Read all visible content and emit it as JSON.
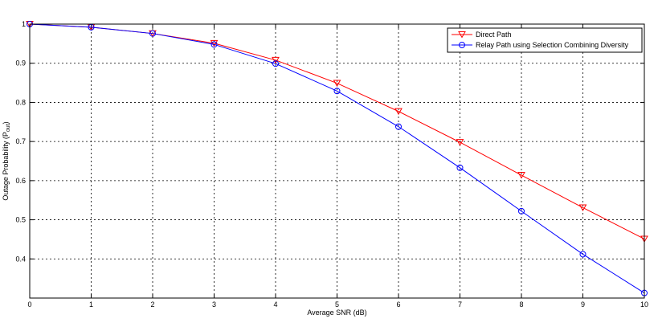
{
  "chart_data": {
    "type": "line",
    "xlabel": "Average SNR (dB)",
    "ylabel": "Outage Probability",
    "ylabel_symbol": "P",
    "ylabel_subscript": "out",
    "xlim": [
      0,
      10
    ],
    "ylim": [
      0.3,
      1.0
    ],
    "x_ticks": [
      "0",
      "1",
      "2",
      "3",
      "4",
      "5",
      "6",
      "7",
      "8",
      "9",
      "10"
    ],
    "y_ticks": [
      "0.4",
      "0.5",
      "0.6",
      "0.7",
      "0.8",
      "0.9",
      "1"
    ],
    "grid": true,
    "legend_position": "top-right",
    "x": [
      0,
      1,
      2,
      3,
      4,
      5,
      6,
      7,
      8,
      9,
      10
    ],
    "series": [
      {
        "name": "Direct Path",
        "color": "#ff0000",
        "marker": "triangle-down",
        "values": [
          1.0,
          0.992,
          0.976,
          0.951,
          0.908,
          0.849,
          0.777,
          0.698,
          0.614,
          0.531,
          0.451
        ]
      },
      {
        "name": "Relay Path using Selection Combining Diversity",
        "color": "#0000ff",
        "marker": "circle",
        "values": [
          1.0,
          0.992,
          0.976,
          0.948,
          0.899,
          0.829,
          0.738,
          0.633,
          0.522,
          0.412,
          0.313
        ]
      }
    ]
  }
}
